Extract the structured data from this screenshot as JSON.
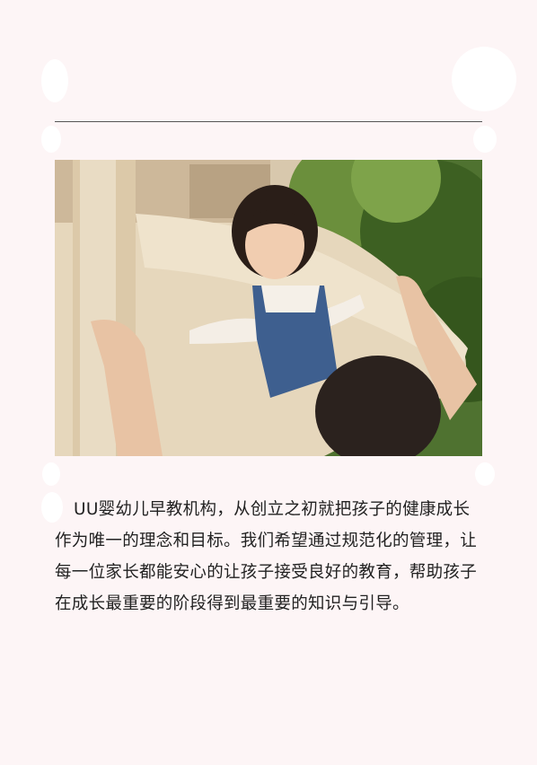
{
  "article": {
    "photo_alt": "",
    "caption": "UU婴幼儿早教机构，从创立之初就把孩子的健康成长作为唯一的理念和目标。我们希望通过规范化的管理，让每一位家长都能安心的让孩子接受良好的教育，帮助孩子在成长最重要的阶段得到最重要的知识与引导。"
  },
  "colors": {
    "background": "#fdf5f6",
    "divider": "#555555",
    "text": "#222222"
  }
}
